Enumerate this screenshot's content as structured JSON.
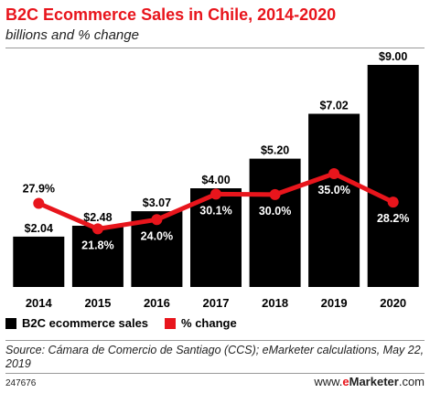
{
  "header": {
    "title": "B2C Ecommerce Sales in Chile, 2014-2020",
    "subtitle": "billions and % change"
  },
  "legend": {
    "items": [
      {
        "label": "B2C ecommerce sales",
        "color": "#000000"
      },
      {
        "label": "% change",
        "color": "#e8151c"
      }
    ]
  },
  "footer": {
    "source": "Source: Cámara de Comercio de Santiago (CCS); eMarketer calculations, May 22, 2019",
    "chart_id": "247676",
    "brand_www": "www.",
    "brand_e": "e",
    "brand_name": "Marketer",
    "brand_com": ".com"
  },
  "chart_data": {
    "type": "bar",
    "categories": [
      "2014",
      "2015",
      "2016",
      "2017",
      "2018",
      "2019",
      "2020"
    ],
    "series": [
      {
        "name": "B2C ecommerce sales",
        "type": "bar",
        "color": "#000000",
        "values": [
          2.04,
          2.48,
          3.07,
          4.0,
          5.2,
          7.02,
          9.0
        ],
        "labels": [
          "$2.04",
          "$2.48",
          "$3.07",
          "$4.00",
          "$5.20",
          "$7.02",
          "$9.00"
        ]
      },
      {
        "name": "% change",
        "type": "line",
        "color": "#e8151c",
        "values": [
          27.9,
          21.8,
          24.0,
          30.1,
          30.0,
          35.0,
          28.2
        ],
        "labels": [
          "27.9%",
          "21.8%",
          "24.0%",
          "30.1%",
          "30.0%",
          "35.0%",
          "28.2%"
        ]
      }
    ],
    "ylim": [
      0,
      9.0
    ],
    "y2lim": [
      0,
      60
    ],
    "grid": false,
    "legend_position": "bottom-left"
  }
}
